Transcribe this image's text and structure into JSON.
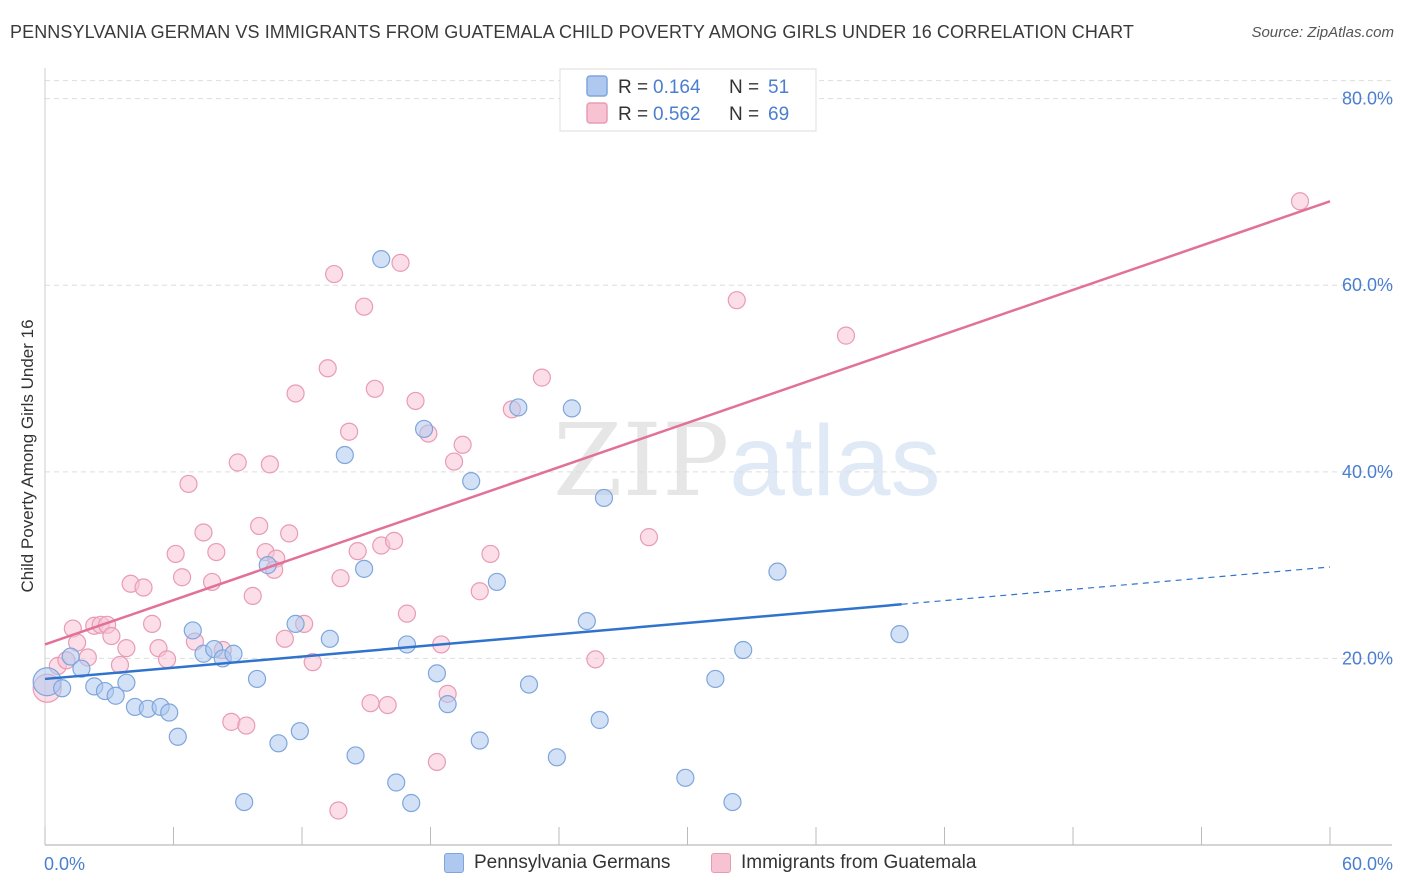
{
  "header": {
    "title": "PENNSYLVANIA GERMAN VS IMMIGRANTS FROM GUATEMALA CHILD POVERTY AMONG GIRLS UNDER 16 CORRELATION CHART",
    "source": "Source: ZipAtlas.com"
  },
  "watermark": {
    "zip": "ZIP",
    "atlas": "atlas"
  },
  "colors": {
    "blue_fill": "#aec8f0",
    "blue_stroke": "#7ea6dc",
    "blue_line": "#2f73cc",
    "pink_fill": "#f7c3d3",
    "pink_stroke": "#e99bb5",
    "pink_line": "#e2719a",
    "axis_text": "#4a7fd0",
    "grid": "#dddddd"
  },
  "legend_top": {
    "rows": [
      {
        "r_label": "R =",
        "r_value": "0.164",
        "n_label": "N =",
        "n_value": "51"
      },
      {
        "r_label": "R =",
        "r_value": "0.562",
        "n_label": "N =",
        "n_value": "69"
      }
    ]
  },
  "legend_bottom": [
    "Pennsylvania Germans",
    "Immigrants from Guatemala"
  ],
  "chart_data": {
    "type": "scatter",
    "title": "PENNSYLVANIA GERMAN VS IMMIGRANTS FROM GUATEMALA CHILD POVERTY AMONG GIRLS UNDER 16 CORRELATION CHART",
    "xlabel": "",
    "ylabel": "Child Poverty Among Girls Under 16",
    "xlim": [
      0,
      60
    ],
    "ylim": [
      0,
      82
    ],
    "x_tick_labels": [
      "0.0%",
      "60.0%"
    ],
    "y_tick_labels": [
      "20.0%",
      "40.0%",
      "60.0%",
      "80.0%"
    ],
    "y_ticks": [
      20,
      40,
      60,
      80
    ],
    "grid": true,
    "legend_position": "top-center",
    "series": [
      {
        "name": "Pennsylvania Germans",
        "color": "#aec8f0",
        "points": [
          [
            0.1,
            17.5
          ],
          [
            0.8,
            16.8
          ],
          [
            1.2,
            20.2
          ],
          [
            1.7,
            18.9
          ],
          [
            2.3,
            17.0
          ],
          [
            2.8,
            16.5
          ],
          [
            3.3,
            16.0
          ],
          [
            3.8,
            17.4
          ],
          [
            4.2,
            14.8
          ],
          [
            4.8,
            14.6
          ],
          [
            5.4,
            14.8
          ],
          [
            5.8,
            14.2
          ],
          [
            6.2,
            11.6
          ],
          [
            6.9,
            23.0
          ],
          [
            7.4,
            20.5
          ],
          [
            7.9,
            21.0
          ],
          [
            8.3,
            20.0
          ],
          [
            8.8,
            20.5
          ],
          [
            9.3,
            4.6
          ],
          [
            9.9,
            17.8
          ],
          [
            10.4,
            30.0
          ],
          [
            10.9,
            10.9
          ],
          [
            11.7,
            23.7
          ],
          [
            11.9,
            12.2
          ],
          [
            13.3,
            22.1
          ],
          [
            14.0,
            41.8
          ],
          [
            14.5,
            9.6
          ],
          [
            14.9,
            29.6
          ],
          [
            15.7,
            62.8
          ],
          [
            16.4,
            6.7
          ],
          [
            16.9,
            21.5
          ],
          [
            17.1,
            4.5
          ],
          [
            17.7,
            44.6
          ],
          [
            18.3,
            18.4
          ],
          [
            18.8,
            15.1
          ],
          [
            19.9,
            39.0
          ],
          [
            20.3,
            11.2
          ],
          [
            21.1,
            28.2
          ],
          [
            22.1,
            46.9
          ],
          [
            22.6,
            17.2
          ],
          [
            23.9,
            9.4
          ],
          [
            24.6,
            46.8
          ],
          [
            25.3,
            24.0
          ],
          [
            25.9,
            13.4
          ],
          [
            26.1,
            37.2
          ],
          [
            29.9,
            7.2
          ],
          [
            31.3,
            17.8
          ],
          [
            32.1,
            4.6
          ],
          [
            32.6,
            20.9
          ],
          [
            34.2,
            29.3
          ],
          [
            39.9,
            22.6
          ]
        ]
      },
      {
        "name": "Immigrants from Guatemala",
        "color": "#f7c3d3",
        "points": [
          [
            0.1,
            16.8
          ],
          [
            0.6,
            19.2
          ],
          [
            1.0,
            19.8
          ],
          [
            1.3,
            23.2
          ],
          [
            1.5,
            21.7
          ],
          [
            2.0,
            20.1
          ],
          [
            2.3,
            23.5
          ],
          [
            2.6,
            23.6
          ],
          [
            2.9,
            23.6
          ],
          [
            3.1,
            22.4
          ],
          [
            3.5,
            19.3
          ],
          [
            3.8,
            21.1
          ],
          [
            4.0,
            28.0
          ],
          [
            4.6,
            27.6
          ],
          [
            5.0,
            23.7
          ],
          [
            5.3,
            21.1
          ],
          [
            5.7,
            19.9
          ],
          [
            6.1,
            31.2
          ],
          [
            6.4,
            28.7
          ],
          [
            6.7,
            38.7
          ],
          [
            7.0,
            21.8
          ],
          [
            7.4,
            33.5
          ],
          [
            7.8,
            28.2
          ],
          [
            8.0,
            31.4
          ],
          [
            8.3,
            20.9
          ],
          [
            8.7,
            13.2
          ],
          [
            9.0,
            41.0
          ],
          [
            9.4,
            12.8
          ],
          [
            9.7,
            26.7
          ],
          [
            10.0,
            34.2
          ],
          [
            10.3,
            31.4
          ],
          [
            10.5,
            40.8
          ],
          [
            10.8,
            30.7
          ],
          [
            11.2,
            22.1
          ],
          [
            11.4,
            33.4
          ],
          [
            11.7,
            48.4
          ],
          [
            12.1,
            23.7
          ],
          [
            12.5,
            19.6
          ],
          [
            13.2,
            51.1
          ],
          [
            13.5,
            61.2
          ],
          [
            13.8,
            28.6
          ],
          [
            14.2,
            44.3
          ],
          [
            14.6,
            31.5
          ],
          [
            14.9,
            57.7
          ],
          [
            15.2,
            15.2
          ],
          [
            15.4,
            48.9
          ],
          [
            15.7,
            32.1
          ],
          [
            16.3,
            32.6
          ],
          [
            16.6,
            62.4
          ],
          [
            16.9,
            24.8
          ],
          [
            17.3,
            47.6
          ],
          [
            17.9,
            44.1
          ],
          [
            18.3,
            8.9
          ],
          [
            18.5,
            21.5
          ],
          [
            18.8,
            16.2
          ],
          [
            19.1,
            41.1
          ],
          [
            19.5,
            42.9
          ],
          [
            20.3,
            27.2
          ],
          [
            20.8,
            31.2
          ],
          [
            21.8,
            46.7
          ],
          [
            23.2,
            50.1
          ],
          [
            25.7,
            19.9
          ],
          [
            28.2,
            33.0
          ],
          [
            32.3,
            58.4
          ],
          [
            37.4,
            54.6
          ],
          [
            58.6,
            69.0
          ],
          [
            13.7,
            3.7
          ],
          [
            16.0,
            15.0
          ],
          [
            10.7,
            29.5
          ]
        ]
      }
    ],
    "trend_lines": [
      {
        "series": "Pennsylvania Germans",
        "x": [
          0,
          40
        ],
        "y": [
          17.8,
          25.8
        ],
        "dashed_extension": [
          40,
          60
        ],
        "dashed_y": [
          25.8,
          29.8
        ]
      },
      {
        "series": "Immigrants from Guatemala",
        "x": [
          0,
          60
        ],
        "y": [
          21.5,
          69.0
        ]
      }
    ]
  }
}
